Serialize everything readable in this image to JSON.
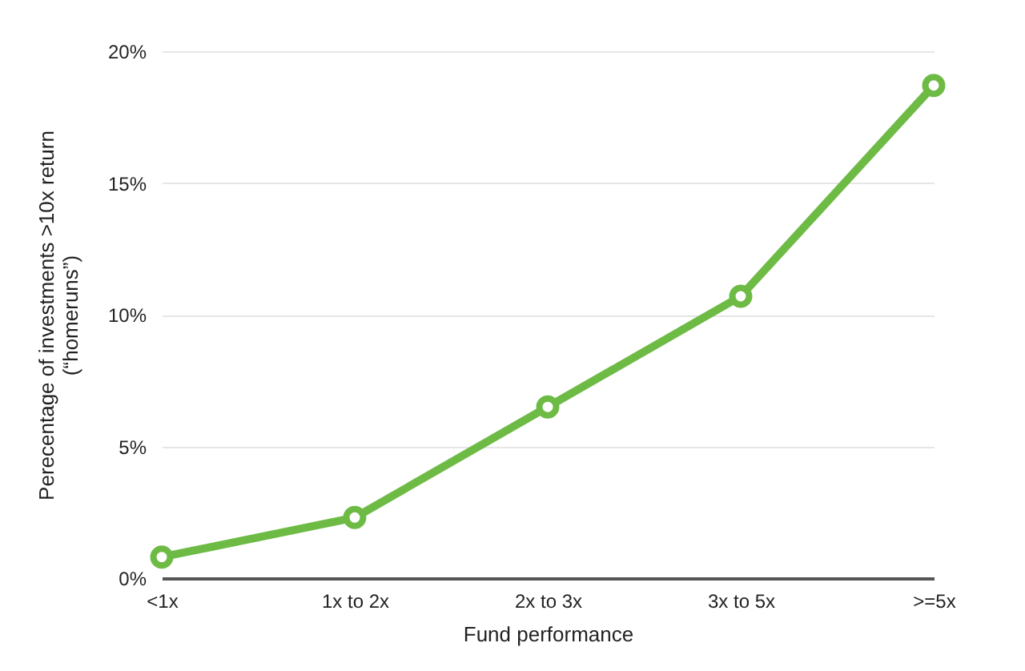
{
  "chart_data": {
    "type": "line",
    "xlabel": "Fund performance",
    "ylabel": "Perecentage of investments >10x return\n(“homeruns”)",
    "categories": [
      "<1x",
      "1x to 2x",
      "2x to 3x",
      "3x to 5x",
      ">=5x"
    ],
    "values": [
      0.8,
      2.3,
      6.5,
      10.7,
      18.7
    ],
    "color": "#6dbb45",
    "ylim": [
      0,
      20
    ],
    "yticks": [
      {
        "value": 0,
        "label": "0%"
      },
      {
        "value": 5,
        "label": "5%"
      },
      {
        "value": 10,
        "label": "10%"
      },
      {
        "value": 15,
        "label": "15%"
      },
      {
        "value": 20,
        "label": "20%"
      }
    ],
    "grid": "y",
    "marker": "circle",
    "line_style": "solid"
  }
}
